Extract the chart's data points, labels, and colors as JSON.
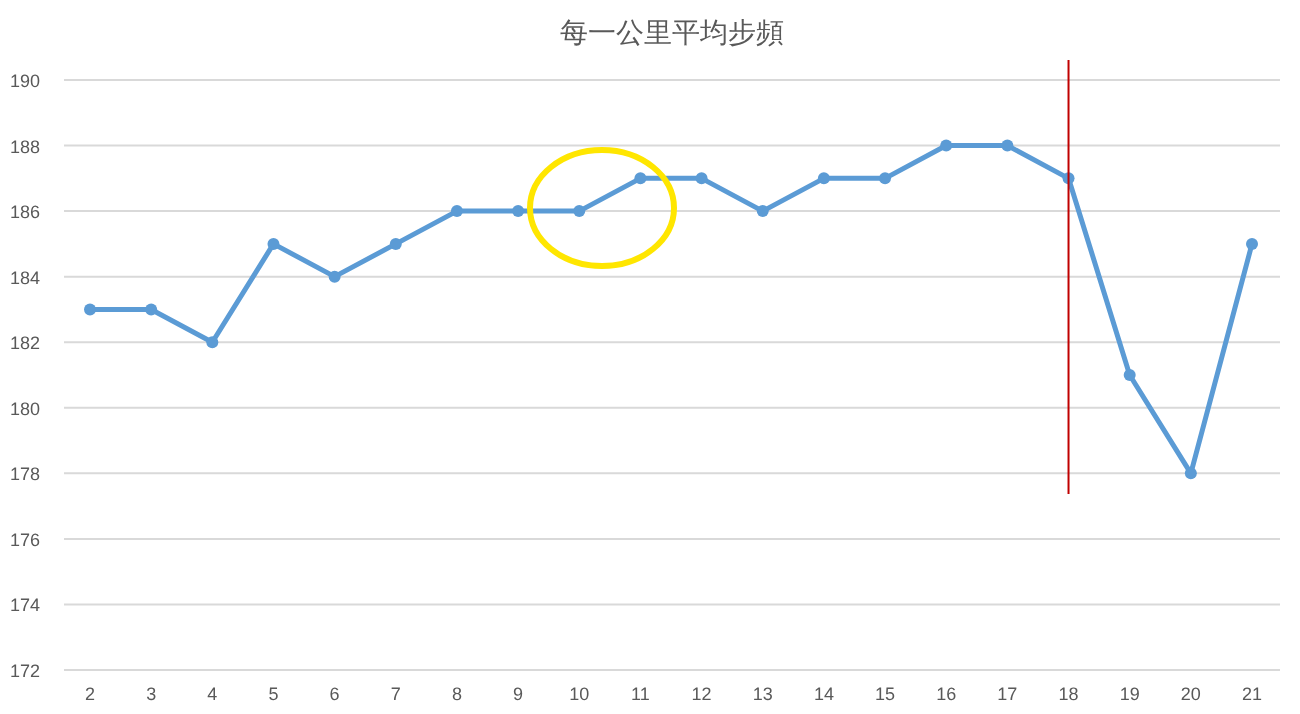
{
  "chart_data": {
    "type": "line",
    "title": "每一公里平均步頻",
    "categories": [
      "2",
      "3",
      "4",
      "5",
      "6",
      "7",
      "8",
      "9",
      "10",
      "11",
      "12",
      "13",
      "14",
      "15",
      "16",
      "17",
      "18",
      "19",
      "20",
      "21"
    ],
    "series": [
      {
        "color": "#5b9bd5",
        "values": [
          183,
          183,
          182,
          185,
          184,
          185,
          186,
          186,
          186,
          187,
          187,
          186,
          187,
          187,
          188,
          188,
          187,
          181,
          178,
          185
        ]
      }
    ],
    "ylim": [
      172,
      190
    ],
    "yticks": [
      172,
      174,
      176,
      178,
      180,
      182,
      184,
      186,
      188,
      190
    ],
    "grid": "y",
    "marker": "circle",
    "line_style": "solid",
    "ref_lines": [
      {
        "axis": "x",
        "value": "18",
        "color": "#c00000",
        "line_style": "solid"
      }
    ]
  }
}
